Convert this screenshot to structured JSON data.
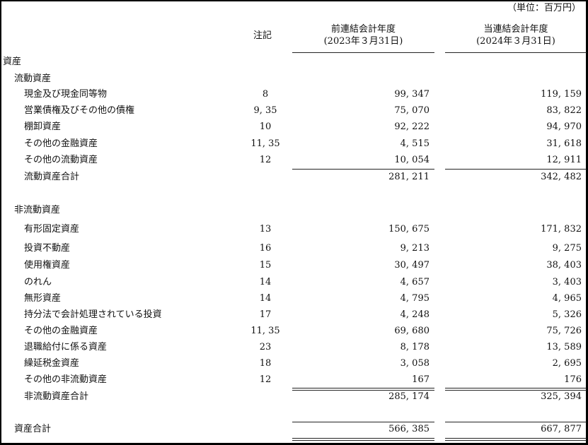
{
  "unit": "（単位：百万円）",
  "header": {
    "note": "注記",
    "prev_title": "前連結会計年度",
    "prev_date": "(2023年３月31日)",
    "curr_title": "当連結会計年度",
    "curr_date": "(2024年３月31日)"
  },
  "rows": [
    {
      "label": "資産",
      "level": 0,
      "note": "",
      "prev": "",
      "curr": ""
    },
    {
      "label": "流動資産",
      "level": 1,
      "note": "",
      "prev": "",
      "curr": ""
    },
    {
      "label": "現金及び現金同等物",
      "level": 2,
      "note": "8",
      "prev": "99, 347",
      "curr": "119, 159"
    },
    {
      "label": "営業債権及びその他の債権",
      "level": 2,
      "note": "9, 35",
      "prev": "75, 070",
      "curr": "83, 822"
    },
    {
      "label": "棚卸資産",
      "level": 2,
      "note": "10",
      "prev": "92, 222",
      "curr": "94, 970"
    },
    {
      "label": "その他の金融資産",
      "level": 2,
      "note": "11, 35",
      "prev": "4, 515",
      "curr": "31, 618"
    },
    {
      "label": "その他の流動資産",
      "level": 2,
      "note": "12",
      "prev": "10, 054",
      "curr": "12, 911"
    },
    {
      "label": "流動資産合計",
      "level": 2,
      "note": "",
      "prev": "281, 211",
      "curr": "342, 482"
    },
    {
      "label": "非流動資産",
      "level": 1,
      "note": "",
      "prev": "",
      "curr": ""
    },
    {
      "label": "有形固定資産",
      "level": 2,
      "note": "13",
      "prev": "150, 675",
      "curr": "171, 832"
    },
    {
      "label": "投資不動産",
      "level": 2,
      "note": "16",
      "prev": "9, 213",
      "curr": "9, 275"
    },
    {
      "label": "使用権資産",
      "level": 2,
      "note": "15",
      "prev": "30, 497",
      "curr": "38, 403"
    },
    {
      "label": "のれん",
      "level": 2,
      "note": "14",
      "prev": "4, 657",
      "curr": "3, 403"
    },
    {
      "label": "無形資産",
      "level": 2,
      "note": "14",
      "prev": "4, 795",
      "curr": "4, 965"
    },
    {
      "label": "持分法で会計処理されている投資",
      "level": 2,
      "note": "17",
      "prev": "4, 248",
      "curr": "5, 326"
    },
    {
      "label": "その他の金融資産",
      "level": 2,
      "note": "11, 35",
      "prev": "69, 680",
      "curr": "75, 726"
    },
    {
      "label": "退職給付に係る資産",
      "level": 2,
      "note": "23",
      "prev": "8, 178",
      "curr": "13, 589"
    },
    {
      "label": "繰延税金資産",
      "level": 2,
      "note": "18",
      "prev": "3, 058",
      "curr": "2, 695"
    },
    {
      "label": "その他の非流動資産",
      "level": 2,
      "note": "12",
      "prev": "167",
      "curr": "176"
    },
    {
      "label": "非流動資産合計",
      "level": 2,
      "note": "",
      "prev": "285, 174",
      "curr": "325, 394"
    },
    {
      "label": "資産合計",
      "level": 1,
      "note": "",
      "prev": "566, 385",
      "curr": "667, 877"
    }
  ]
}
